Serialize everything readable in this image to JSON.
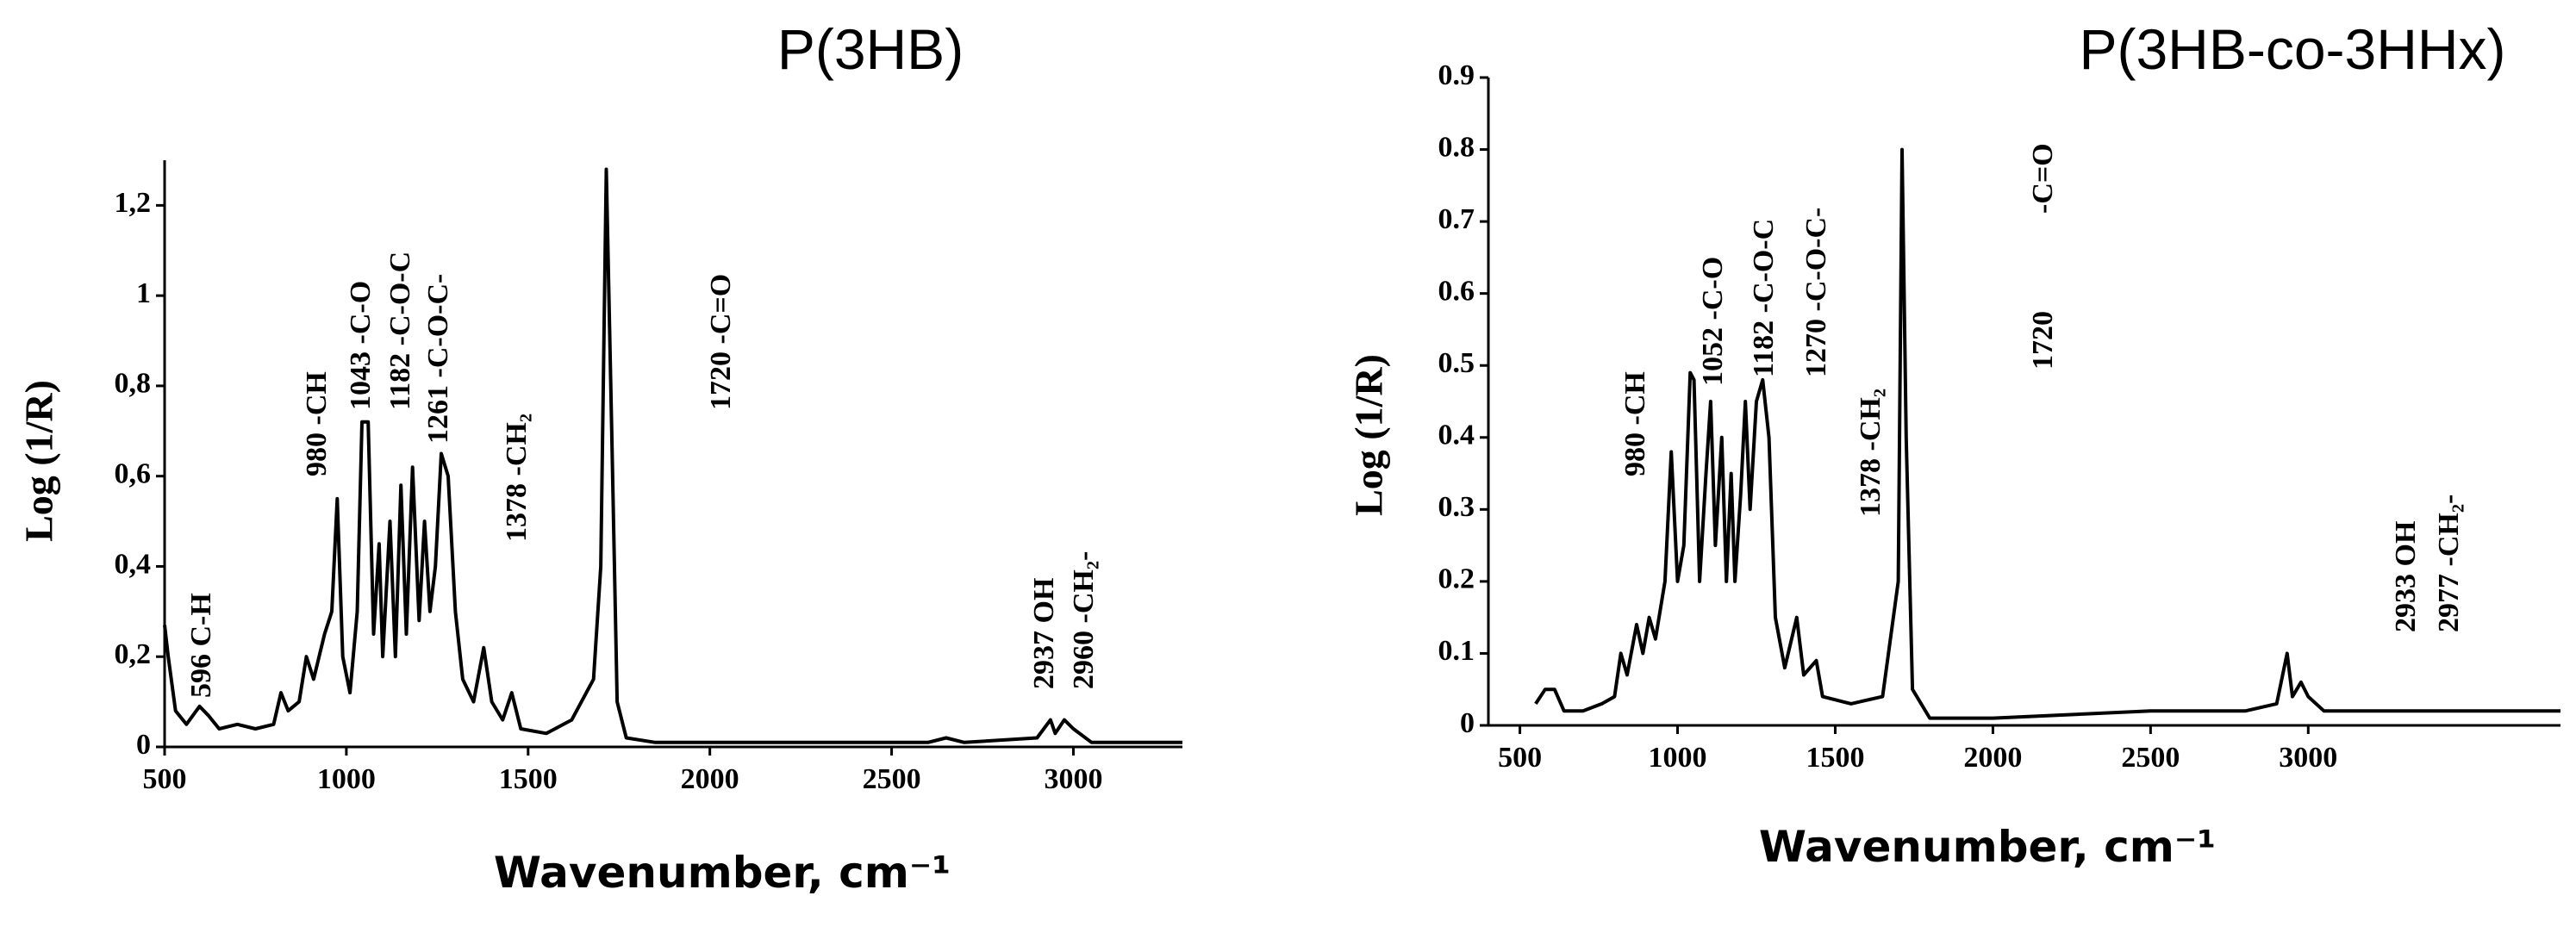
{
  "chart_data": [
    {
      "type": "line",
      "title": "P(3HB)",
      "x_label": "Wavenumber, cm⁻¹",
      "y_label": "Log (1/R)",
      "color": "#000000",
      "x": [
        500,
        510,
        530,
        560,
        596,
        620,
        650,
        700,
        750,
        800,
        820,
        840,
        870,
        890,
        910,
        940,
        960,
        975,
        990,
        1010,
        1030,
        1043,
        1060,
        1075,
        1090,
        1100,
        1120,
        1135,
        1150,
        1165,
        1182,
        1200,
        1215,
        1230,
        1245,
        1261,
        1280,
        1300,
        1320,
        1350,
        1378,
        1400,
        1430,
        1455,
        1480,
        1550,
        1620,
        1680,
        1700,
        1715,
        1730,
        1745,
        1770,
        1850,
        2000,
        2300,
        2600,
        2650,
        2700,
        2900,
        2937,
        2950,
        2975,
        3000,
        3050,
        3300
      ],
      "values": [
        0.27,
        0.2,
        0.08,
        0.05,
        0.09,
        0.07,
        0.04,
        0.05,
        0.04,
        0.05,
        0.12,
        0.08,
        0.1,
        0.2,
        0.15,
        0.25,
        0.3,
        0.55,
        0.2,
        0.12,
        0.3,
        0.72,
        0.72,
        0.25,
        0.45,
        0.2,
        0.5,
        0.2,
        0.58,
        0.25,
        0.62,
        0.28,
        0.5,
        0.3,
        0.4,
        0.65,
        0.6,
        0.3,
        0.15,
        0.1,
        0.22,
        0.1,
        0.06,
        0.12,
        0.04,
        0.03,
        0.06,
        0.15,
        0.4,
        1.28,
        0.7,
        0.1,
        0.02,
        0.01,
        0.01,
        0.01,
        0.01,
        0.02,
        0.01,
        0.02,
        0.06,
        0.03,
        0.06,
        0.04,
        0.01,
        0.01
      ],
      "xlim": [
        500,
        3300
      ],
      "xticks": [
        500,
        1000,
        1500,
        2000,
        2500,
        3000
      ],
      "ylim": [
        0,
        1.3
      ],
      "yticks": [
        0,
        {
          "value": 0.2,
          "label": "0,2"
        },
        {
          "value": 0.4,
          "label": "0,4"
        },
        {
          "value": 0.6,
          "label": "0,6"
        },
        {
          "value": 0.8,
          "label": "0,8"
        },
        1,
        {
          "value": 1.2,
          "label": "1,2"
        }
      ],
      "annotations": [
        "596 C-H",
        "980 -CH",
        "1043 -C-O",
        "1182 -C-O-C",
        "1261 -C-O-C-",
        "1378 -CH₂",
        "1720 -C=O",
        "2937 OH",
        "2960 -CH₂-"
      ]
    },
    {
      "type": "line",
      "title": "P(3HB-co-3HHx)",
      "x_label": "Wavenumber, cm⁻¹",
      "y_label": "Log (1/R)",
      "color": "#000000",
      "x": [
        550,
        580,
        610,
        640,
        700,
        760,
        800,
        820,
        840,
        870,
        890,
        910,
        930,
        960,
        980,
        1000,
        1020,
        1040,
        1052,
        1070,
        1090,
        1105,
        1120,
        1140,
        1155,
        1170,
        1182,
        1200,
        1215,
        1230,
        1250,
        1270,
        1290,
        1310,
        1340,
        1378,
        1400,
        1440,
        1460,
        1550,
        1650,
        1700,
        1712,
        1725,
        1745,
        1800,
        2000,
        2500,
        2800,
        2900,
        2933,
        2950,
        2977,
        3000,
        3050,
        3300,
        3800
      ],
      "values": [
        0.03,
        0.05,
        0.05,
        0.02,
        0.02,
        0.03,
        0.04,
        0.1,
        0.07,
        0.14,
        0.1,
        0.15,
        0.12,
        0.2,
        0.38,
        0.2,
        0.25,
        0.49,
        0.48,
        0.2,
        0.35,
        0.45,
        0.25,
        0.4,
        0.2,
        0.35,
        0.2,
        0.32,
        0.45,
        0.3,
        0.45,
        0.48,
        0.4,
        0.15,
        0.08,
        0.15,
        0.07,
        0.09,
        0.04,
        0.03,
        0.04,
        0.2,
        0.8,
        0.4,
        0.05,
        0.01,
        0.01,
        0.02,
        0.02,
        0.03,
        0.1,
        0.04,
        0.06,
        0.04,
        0.02,
        0.02,
        0.02
      ],
      "xlim": [
        400,
        3800
      ],
      "xticks": [
        500,
        1000,
        1500,
        2000,
        2500,
        3000
      ],
      "ylim": [
        0,
        0.9
      ],
      "yticks": [
        0,
        0.1,
        0.2,
        0.3,
        0.4,
        0.5,
        0.6,
        0.7,
        0.8,
        0.9
      ],
      "annotations": [
        "980 -CH",
        "1052 -C-O",
        "1182 -C-O-C",
        "1270 -C-O-C-",
        "1378 -CH₂",
        "1720",
        "-C=O",
        "2933 OH",
        "2977 -CH₂-"
      ]
    }
  ]
}
